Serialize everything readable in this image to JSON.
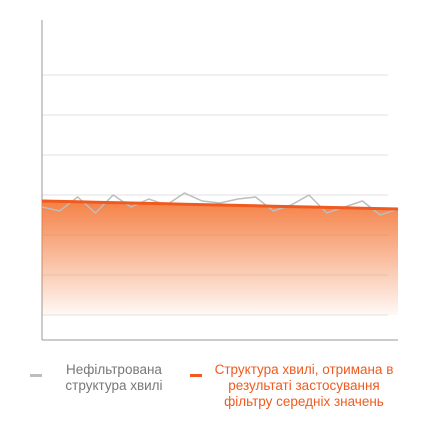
{
  "chart_data": {
    "type": "line",
    "x": [
      0,
      1,
      2,
      3,
      4,
      5,
      6,
      7,
      8,
      9,
      10,
      11,
      12,
      13,
      14,
      15,
      16,
      17,
      18,
      19,
      20
    ],
    "xlim": [
      0,
      20
    ],
    "ylim": [
      0,
      8
    ],
    "yticks": [
      1,
      2,
      3,
      4,
      5,
      6,
      7
    ],
    "grid": true,
    "area_color": "#f47a3c",
    "series": [
      {
        "name": "Нефільтрована структура хвилі",
        "color": "#bdbdbd",
        "values": [
          3.7,
          3.6,
          3.95,
          3.55,
          4.0,
          3.7,
          3.9,
          3.75,
          4.05,
          3.85,
          3.8,
          3.9,
          3.95,
          3.6,
          3.75,
          4.0,
          3.55,
          3.7,
          3.85,
          3.5,
          3.65
        ]
      },
      {
        "name": "Структура хвилі, отримана в результаті застосування фільтру середніх значень",
        "color": "#f05a1e",
        "values": [
          3.85,
          3.84,
          3.83,
          3.82,
          3.81,
          3.8,
          3.79,
          3.78,
          3.77,
          3.76,
          3.75,
          3.74,
          3.73,
          3.72,
          3.71,
          3.7,
          3.69,
          3.68,
          3.67,
          3.66,
          3.65
        ]
      }
    ]
  }
}
